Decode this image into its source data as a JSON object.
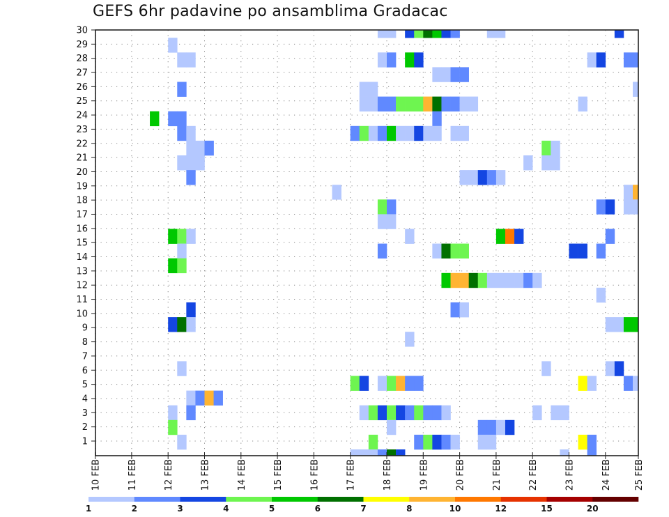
{
  "chart_data": {
    "type": "heatmap",
    "title": "GEFS 6hr padavine po ansamblima Gradacac",
    "x_time_step": "6hr",
    "x_ticks": [
      "10 FEB",
      "11 FEB",
      "12 FEB",
      "13 FEB",
      "14 FEB",
      "15 FEB",
      "16 FEB",
      "17 FEB",
      "18 FEB",
      "19 FEB",
      "20 FEB",
      "21 FEB",
      "22 FEB",
      "23 FEB",
      "24 FEB",
      "25 FEB"
    ],
    "y_ticks": [
      "1",
      "2",
      "3",
      "4",
      "5",
      "6",
      "7",
      "8",
      "9",
      "10",
      "11",
      "12",
      "13",
      "14",
      "15",
      "16",
      "17",
      "18",
      "19",
      "20",
      "21",
      "22",
      "23",
      "24",
      "25",
      "26",
      "27",
      "28",
      "29",
      "30"
    ],
    "grid": "dotted",
    "legend": {
      "placement": "bottom",
      "boundaries": [
        "1",
        "2",
        "3",
        "4",
        "5",
        "6",
        "7",
        "8",
        "10",
        "12",
        "15",
        "20"
      ],
      "colors": [
        "#b4c8ff",
        "#6089ff",
        "#1446e2",
        "#6ef550",
        "#00c800",
        "#007000",
        "#ffff00",
        "#ffb432",
        "#ff7800",
        "#e63200",
        "#a50000",
        "#640000"
      ]
    },
    "cell_format": "[time_step_index_from_10FEB_00, member_row, color_level_index]",
    "cells": [
      [
        31,
        29,
        1
      ],
      [
        32,
        29,
        1
      ],
      [
        34,
        29,
        3
      ],
      [
        35,
        29,
        4
      ],
      [
        36,
        29,
        6
      ],
      [
        37,
        29,
        5
      ],
      [
        38,
        29,
        3
      ],
      [
        39,
        29,
        2
      ],
      [
        43,
        29,
        1
      ],
      [
        44,
        29,
        1
      ],
      [
        57,
        29,
        3
      ],
      [
        8,
        28,
        1
      ],
      [
        9,
        27,
        1
      ],
      [
        10,
        27,
        1
      ],
      [
        31,
        27,
        1
      ],
      [
        32,
        27,
        2
      ],
      [
        34,
        27,
        5
      ],
      [
        35,
        27,
        3
      ],
      [
        54,
        27,
        1
      ],
      [
        55,
        27,
        3
      ],
      [
        58,
        27,
        2
      ],
      [
        59,
        27,
        2
      ],
      [
        37,
        26,
        1
      ],
      [
        38,
        26,
        1
      ],
      [
        39,
        26,
        2
      ],
      [
        40,
        26,
        2
      ],
      [
        9,
        25,
        2
      ],
      [
        29,
        25,
        1
      ],
      [
        30,
        25,
        1
      ],
      [
        59,
        25,
        1
      ],
      [
        29,
        24,
        1
      ],
      [
        30,
        24,
        1
      ],
      [
        31,
        24,
        2
      ],
      [
        32,
        24,
        2
      ],
      [
        33,
        24,
        4
      ],
      [
        34,
        24,
        4
      ],
      [
        35,
        24,
        4
      ],
      [
        36,
        24,
        8
      ],
      [
        37,
        24,
        6
      ],
      [
        38,
        24,
        2
      ],
      [
        39,
        24,
        2
      ],
      [
        40,
        24,
        1
      ],
      [
        41,
        24,
        1
      ],
      [
        53,
        24,
        1
      ],
      [
        6,
        23,
        5
      ],
      [
        8,
        23,
        2
      ],
      [
        9,
        23,
        2
      ],
      [
        37,
        23,
        2
      ],
      [
        9,
        22,
        2
      ],
      [
        10,
        22,
        1
      ],
      [
        28,
        22,
        2
      ],
      [
        29,
        22,
        4
      ],
      [
        30,
        22,
        1
      ],
      [
        31,
        22,
        2
      ],
      [
        32,
        22,
        5
      ],
      [
        33,
        22,
        1
      ],
      [
        34,
        22,
        1
      ],
      [
        35,
        22,
        3
      ],
      [
        36,
        22,
        1
      ],
      [
        37,
        22,
        1
      ],
      [
        39,
        22,
        1
      ],
      [
        40,
        22,
        1
      ],
      [
        10,
        21,
        1
      ],
      [
        11,
        21,
        1
      ],
      [
        12,
        21,
        2
      ],
      [
        49,
        21,
        4
      ],
      [
        50,
        21,
        1
      ],
      [
        9,
        20,
        1
      ],
      [
        10,
        20,
        1
      ],
      [
        11,
        20,
        1
      ],
      [
        47,
        20,
        1
      ],
      [
        49,
        20,
        1
      ],
      [
        50,
        20,
        1
      ],
      [
        10,
        19,
        2
      ],
      [
        40,
        19,
        1
      ],
      [
        41,
        19,
        1
      ],
      [
        42,
        19,
        3
      ],
      [
        43,
        19,
        2
      ],
      [
        44,
        19,
        1
      ],
      [
        26,
        18,
        1
      ],
      [
        58,
        18,
        1
      ],
      [
        59,
        18,
        8
      ],
      [
        31,
        17,
        4
      ],
      [
        32,
        17,
        2
      ],
      [
        55,
        17,
        2
      ],
      [
        56,
        17,
        3
      ],
      [
        58,
        17,
        1
      ],
      [
        59,
        17,
        1
      ],
      [
        31,
        16,
        1
      ],
      [
        32,
        16,
        1
      ],
      [
        8,
        15,
        5
      ],
      [
        9,
        15,
        4
      ],
      [
        10,
        15,
        1
      ],
      [
        34,
        15,
        1
      ],
      [
        44,
        15,
        5
      ],
      [
        45,
        15,
        9
      ],
      [
        46,
        15,
        3
      ],
      [
        56,
        15,
        2
      ],
      [
        9,
        14,
        1
      ],
      [
        31,
        14,
        2
      ],
      [
        37,
        14,
        1
      ],
      [
        38,
        14,
        6
      ],
      [
        39,
        14,
        4
      ],
      [
        40,
        14,
        4
      ],
      [
        52,
        14,
        3
      ],
      [
        53,
        14,
        3
      ],
      [
        55,
        14,
        2
      ],
      [
        8,
        13,
        5
      ],
      [
        9,
        13,
        4
      ],
      [
        38,
        12,
        5
      ],
      [
        39,
        12,
        8
      ],
      [
        40,
        12,
        8
      ],
      [
        41,
        12,
        6
      ],
      [
        42,
        12,
        4
      ],
      [
        43,
        12,
        1
      ],
      [
        44,
        12,
        1
      ],
      [
        45,
        12,
        1
      ],
      [
        46,
        12,
        1
      ],
      [
        47,
        12,
        2
      ],
      [
        48,
        12,
        1
      ],
      [
        55,
        11,
        1
      ],
      [
        10,
        10,
        3
      ],
      [
        39,
        10,
        2
      ],
      [
        40,
        10,
        1
      ],
      [
        8,
        9,
        3
      ],
      [
        9,
        9,
        6
      ],
      [
        10,
        9,
        1
      ],
      [
        56,
        9,
        1
      ],
      [
        57,
        9,
        1
      ],
      [
        58,
        9,
        5
      ],
      [
        59,
        9,
        5
      ],
      [
        34,
        8,
        1
      ],
      [
        9,
        6,
        1
      ],
      [
        49,
        6,
        1
      ],
      [
        56,
        6,
        1
      ],
      [
        57,
        6,
        3
      ],
      [
        28,
        5,
        4
      ],
      [
        29,
        5,
        3
      ],
      [
        31,
        5,
        1
      ],
      [
        32,
        5,
        4
      ],
      [
        33,
        5,
        8
      ],
      [
        34,
        5,
        2
      ],
      [
        35,
        5,
        2
      ],
      [
        53,
        5,
        7
      ],
      [
        54,
        5,
        1
      ],
      [
        58,
        5,
        2
      ],
      [
        59,
        5,
        1
      ],
      [
        10,
        4,
        1
      ],
      [
        11,
        4,
        2
      ],
      [
        12,
        4,
        8
      ],
      [
        13,
        4,
        2
      ],
      [
        8,
        3,
        1
      ],
      [
        10,
        3,
        2
      ],
      [
        29,
        3,
        1
      ],
      [
        30,
        3,
        4
      ],
      [
        31,
        3,
        3
      ],
      [
        32,
        3,
        4
      ],
      [
        33,
        3,
        3
      ],
      [
        34,
        3,
        2
      ],
      [
        35,
        3,
        4
      ],
      [
        36,
        3,
        2
      ],
      [
        37,
        3,
        2
      ],
      [
        38,
        3,
        1
      ],
      [
        48,
        3,
        1
      ],
      [
        50,
        3,
        1
      ],
      [
        51,
        3,
        1
      ],
      [
        8,
        2,
        4
      ],
      [
        32,
        2,
        1
      ],
      [
        42,
        2,
        2
      ],
      [
        43,
        2,
        2
      ],
      [
        44,
        2,
        1
      ],
      [
        45,
        2,
        3
      ],
      [
        9,
        1,
        1
      ],
      [
        30,
        1,
        4
      ],
      [
        35,
        1,
        2
      ],
      [
        36,
        1,
        4
      ],
      [
        37,
        1,
        3
      ],
      [
        38,
        1,
        2
      ],
      [
        39,
        1,
        1
      ],
      [
        42,
        1,
        1
      ],
      [
        43,
        1,
        1
      ],
      [
        53,
        1,
        7
      ],
      [
        54,
        1,
        2
      ],
      [
        28,
        0,
        1
      ],
      [
        29,
        0,
        1
      ],
      [
        30,
        0,
        1
      ],
      [
        31,
        0,
        2
      ],
      [
        32,
        0,
        6
      ],
      [
        33,
        0,
        3
      ],
      [
        51,
        0,
        1
      ],
      [
        54,
        0,
        2
      ]
    ]
  }
}
